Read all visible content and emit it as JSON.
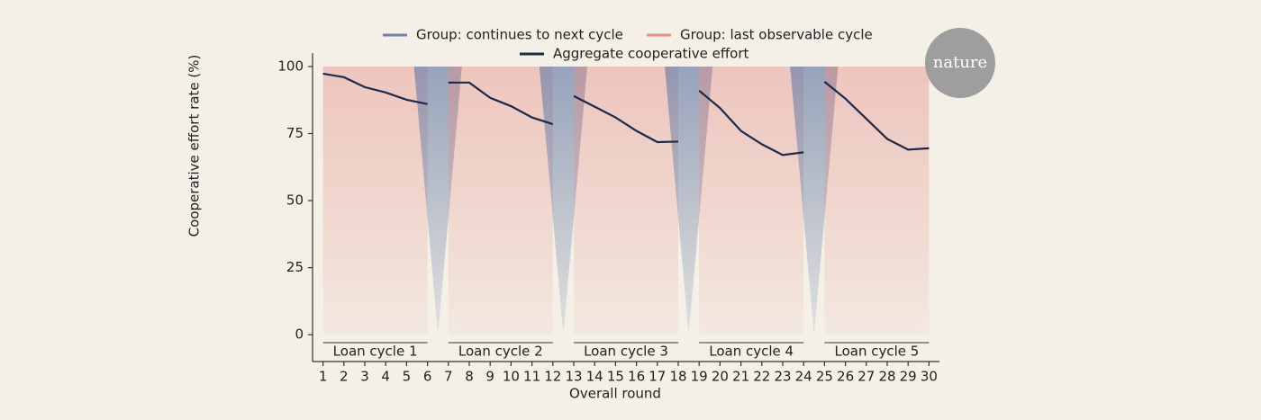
{
  "chart_data": {
    "type": "line",
    "y_label": "Cooperative effort rate (%)",
    "x_label": "Overall round",
    "logo": "nature",
    "x": [
      1,
      2,
      3,
      4,
      5,
      6,
      7,
      8,
      9,
      10,
      11,
      12,
      13,
      14,
      15,
      16,
      17,
      18,
      19,
      20,
      21,
      22,
      23,
      24,
      25,
      26,
      27,
      28,
      29,
      30
    ],
    "xlim": [
      0.5,
      30.5
    ],
    "xticks": [
      1,
      2,
      3,
      4,
      5,
      6,
      7,
      8,
      9,
      10,
      11,
      12,
      13,
      14,
      15,
      16,
      17,
      18,
      19,
      20,
      21,
      22,
      23,
      24,
      25,
      26,
      27,
      28,
      29,
      30
    ],
    "ylim": [
      -10,
      105
    ],
    "yticks": [
      0,
      25,
      50,
      75,
      100
    ],
    "cycles": [
      {
        "label": "Loan cycle 1",
        "rounds": [
          1,
          6
        ]
      },
      {
        "label": "Loan cycle 2",
        "rounds": [
          7,
          12
        ]
      },
      {
        "label": "Loan cycle 3",
        "rounds": [
          13,
          18
        ]
      },
      {
        "label": "Loan cycle 4",
        "rounds": [
          19,
          24
        ]
      },
      {
        "label": "Loan cycle 5",
        "rounds": [
          25,
          30
        ]
      }
    ],
    "series": [
      {
        "name": "Group: continues to next cycle",
        "color": "#6f82a8"
      },
      {
        "name": "Group: last observable cycle",
        "color": "#e4908b"
      },
      {
        "name": "Aggregate cooperative effort",
        "color": "#1c2a4a",
        "values": [
          97.3,
          96,
          92.3,
          90.3,
          87.6,
          86,
          94,
          94,
          88.3,
          85.2,
          81,
          78.5,
          89,
          85,
          81,
          76,
          71.8,
          72,
          91,
          84.5,
          76,
          71,
          67,
          68,
          94.3,
          88,
          80.5,
          73,
          69,
          69.5
        ]
      }
    ]
  }
}
